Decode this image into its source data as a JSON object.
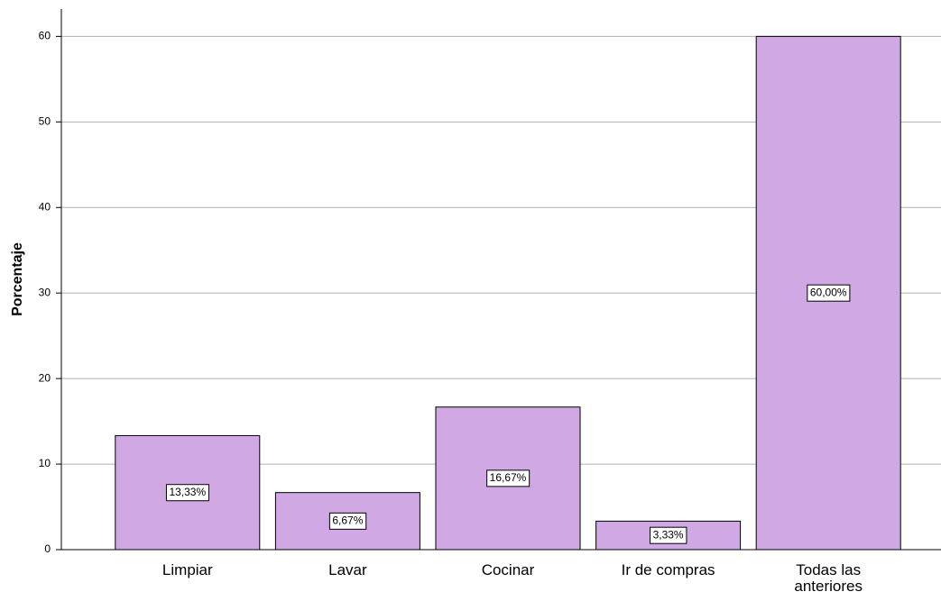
{
  "chart_data": {
    "type": "bar",
    "y_label": "Porcentaje",
    "categories": [
      "Limpiar",
      "Lavar",
      "Cocinar",
      "Ir de compras",
      "Todas las anteriores"
    ],
    "values": [
      13.33,
      6.67,
      16.67,
      3.33,
      60
    ],
    "value_labels": [
      "13,33%",
      "6,67%",
      "16,67%",
      "3,33%",
      "60,00%"
    ],
    "color": "#d0a8e4",
    "ylim": [
      0,
      63.2
    ],
    "yticks": [
      0,
      10,
      20,
      30,
      40,
      50,
      60
    ],
    "grid": true
  }
}
